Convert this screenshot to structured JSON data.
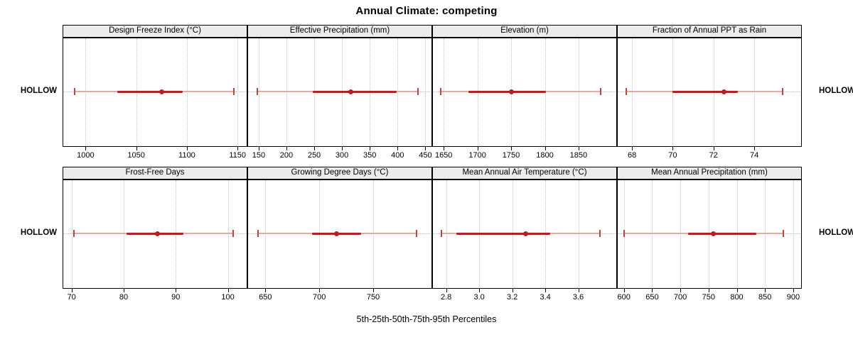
{
  "chart_data": {
    "type": "dotplot-interval-trellis",
    "title": "Annual Climate: competing",
    "caption": "5th-25th-50th-75th-95th Percentiles",
    "group_label": "HOLLOW",
    "legend_position": "none",
    "grid": "dotted-vertical",
    "colors": {
      "median_point": "#b22222",
      "interquartile_bar": "#b22222",
      "whisker": "#e5aaa5",
      "whisker_cap": "#bc4340",
      "gridline": "#c8c8c8",
      "reference_line": "#bdbdbd",
      "strip_background": "#ececec",
      "panel_border": "#000000"
    },
    "rows": [
      {
        "panels": [
          {
            "label": "Design Freeze Index (°C)",
            "xlim": [
              978,
              1159
            ],
            "ticks": [
              1000,
              1050,
              1100,
              1150
            ],
            "tick_labels": [
              "1000",
              "1050",
              "1100",
              "1150"
            ],
            "percentiles": [
              989,
              1031,
              1075,
              1096,
              1146
            ]
          },
          {
            "label": "Effective Precipitation (mm)",
            "xlim": [
              131,
              461
            ],
            "ticks": [
              150,
              200,
              250,
              300,
              350,
              400,
              450
            ],
            "tick_labels": [
              "150",
              "200",
              "250",
              "300",
              "350",
              "400",
              "450"
            ],
            "percentiles": [
              148,
              247,
              316,
              398,
              437
            ]
          },
          {
            "label": "Elevation (m)",
            "xlim": [
              1634,
              1906
            ],
            "ticks": [
              1650,
              1700,
              1750,
              1800,
              1850
            ],
            "tick_labels": [
              "1650",
              "1700",
              "1750",
              "1800",
              "1850"
            ],
            "percentiles": [
              1646,
              1687,
              1750,
              1802,
              1883
            ]
          },
          {
            "label": "Fraction of Annual PPT as Rain",
            "xlim": [
              67.3,
              76.3
            ],
            "ticks": [
              68,
              70,
              72,
              74
            ],
            "tick_labels": [
              "68",
              "70",
              "72",
              "74"
            ],
            "percentiles": [
              67.7,
              70.0,
              72.5,
              73.2,
              75.4
            ]
          }
        ]
      },
      {
        "panels": [
          {
            "label": "Frost-Free Days",
            "xlim": [
              68.4,
              103.6
            ],
            "ticks": [
              70,
              80,
              90,
              100
            ],
            "tick_labels": [
              "70",
              "80",
              "90",
              "100"
            ],
            "percentiles": [
              70.5,
              80.6,
              86.5,
              91.4,
              101
            ]
          },
          {
            "label": "Growing Degree Days (°C)",
            "xlim": [
              634,
              804
            ],
            "ticks": [
              650,
              700,
              750
            ],
            "tick_labels": [
              "650",
              "700",
              "750"
            ],
            "percentiles": [
              643,
              693,
              716,
              739,
              790
            ]
          },
          {
            "label": "Mean Annual Air Temperature (°C)",
            "xlim": [
              2.72,
              3.83
            ],
            "ticks": [
              2.8,
              3.0,
              3.2,
              3.4,
              3.6
            ],
            "tick_labels": [
              "2.8",
              "3.0",
              "3.2",
              "3.4",
              "3.6"
            ],
            "percentiles": [
              2.77,
              2.86,
              3.28,
              3.43,
              3.73
            ]
          },
          {
            "label": "Mean Annual Precipitation (mm)",
            "xlim": [
              589,
              914
            ],
            "ticks": [
              600,
              650,
              700,
              750,
              800,
              850,
              900
            ],
            "tick_labels": [
              "600",
              "650",
              "700",
              "750",
              "800",
              "850",
              "900"
            ],
            "percentiles": [
              600,
              714,
              758,
              835,
              883
            ]
          }
        ]
      }
    ]
  }
}
